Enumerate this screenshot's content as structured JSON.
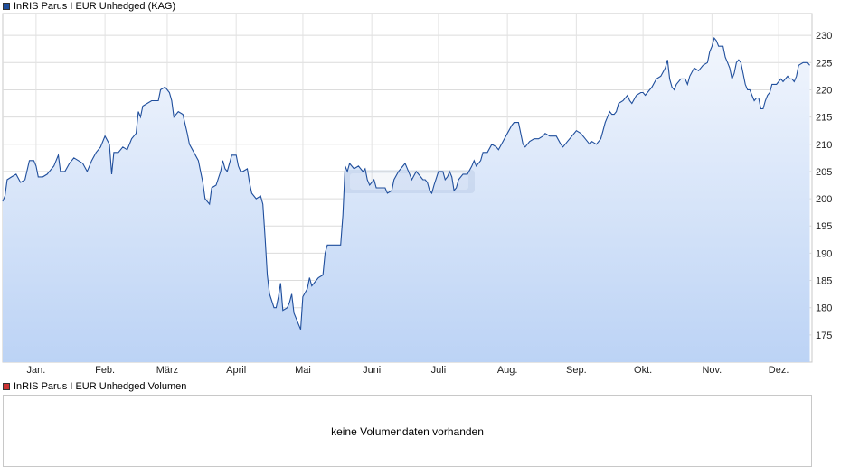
{
  "chart_data": [
    {
      "type": "area",
      "legend": "InRIS Parus I EUR Unhedged (KAG)",
      "series_color": "#1f4e9c",
      "fill_top_color": "#f2f6fd",
      "fill_bottom_color": "#bcd3f5",
      "grid": true,
      "ylim": [
        170,
        234
      ],
      "y_ticks": [
        175,
        180,
        185,
        190,
        195,
        200,
        205,
        210,
        215,
        220,
        225,
        230
      ],
      "y_axis_position": "right",
      "x_ticks": [
        {
          "label": "Jan.",
          "day": 15
        },
        {
          "label": "Feb.",
          "day": 46
        },
        {
          "label": "März",
          "day": 74
        },
        {
          "label": "April",
          "day": 105
        },
        {
          "label": "Mai",
          "day": 135
        },
        {
          "label": "Juni",
          "day": 166
        },
        {
          "label": "Juli",
          "day": 196
        },
        {
          "label": "Aug.",
          "day": 227
        },
        {
          "label": "Sep.",
          "day": 258
        },
        {
          "label": "Okt.",
          "day": 288
        },
        {
          "label": "Nov.",
          "day": 319
        },
        {
          "label": "Dez.",
          "day": 349
        }
      ],
      "xlim": [
        0,
        364
      ],
      "points": [
        [
          0,
          199.5
        ],
        [
          1,
          200.5
        ],
        [
          2,
          203.5
        ],
        [
          4,
          204
        ],
        [
          6,
          204.5
        ],
        [
          8,
          203
        ],
        [
          10,
          203.5
        ],
        [
          12,
          207
        ],
        [
          14,
          207
        ],
        [
          15,
          206
        ],
        [
          16,
          204
        ],
        [
          18,
          204
        ],
        [
          20,
          204.5
        ],
        [
          21,
          205
        ],
        [
          23,
          206
        ],
        [
          25,
          208
        ],
        [
          26,
          205
        ],
        [
          28,
          205
        ],
        [
          30,
          206.5
        ],
        [
          32,
          207.5
        ],
        [
          34,
          207
        ],
        [
          36,
          206.5
        ],
        [
          38,
          205
        ],
        [
          39,
          206
        ],
        [
          40,
          207
        ],
        [
          42,
          208.5
        ],
        [
          44,
          209.5
        ],
        [
          46,
          211.5
        ],
        [
          48,
          210
        ],
        [
          49,
          204.5
        ],
        [
          50,
          208.5
        ],
        [
          52,
          208.5
        ],
        [
          54,
          209.5
        ],
        [
          56,
          209
        ],
        [
          58,
          211
        ],
        [
          60,
          212
        ],
        [
          61,
          216
        ],
        [
          62,
          215
        ],
        [
          63,
          217
        ],
        [
          65,
          217.5
        ],
        [
          67,
          218
        ],
        [
          70,
          218
        ],
        [
          71,
          220
        ],
        [
          73,
          220.5
        ],
        [
          75,
          219.5
        ],
        [
          76,
          218
        ],
        [
          77,
          215
        ],
        [
          79,
          216
        ],
        [
          81,
          215.5
        ],
        [
          83,
          212
        ],
        [
          84,
          210
        ],
        [
          86,
          208.5
        ],
        [
          88,
          207
        ],
        [
          89,
          205
        ],
        [
          90,
          203
        ],
        [
          91,
          200
        ],
        [
          93,
          199
        ],
        [
          94,
          202
        ],
        [
          96,
          202.5
        ],
        [
          98,
          205
        ],
        [
          99,
          207
        ],
        [
          100,
          205.5
        ],
        [
          101,
          205
        ],
        [
          103,
          208
        ],
        [
          105,
          208
        ],
        [
          106,
          206
        ],
        [
          107,
          205
        ],
        [
          108,
          205
        ],
        [
          110,
          205.5
        ],
        [
          111,
          203
        ],
        [
          112,
          201
        ],
        [
          114,
          200
        ],
        [
          116,
          200.5
        ],
        [
          117,
          199
        ],
        [
          118,
          193
        ],
        [
          119,
          186
        ],
        [
          120,
          182.5
        ],
        [
          122,
          180
        ],
        [
          123,
          180
        ],
        [
          124,
          182
        ],
        [
          125,
          184.5
        ],
        [
          126,
          179.5
        ],
        [
          128,
          180
        ],
        [
          129,
          181
        ],
        [
          130,
          182.5
        ],
        [
          131,
          179
        ],
        [
          132,
          178
        ],
        [
          133,
          177
        ],
        [
          134,
          176
        ],
        [
          135,
          182
        ],
        [
          137,
          183.5
        ],
        [
          138,
          185.5
        ],
        [
          139,
          184
        ],
        [
          141,
          185
        ],
        [
          142,
          185.5
        ],
        [
          144,
          186
        ],
        [
          145,
          190
        ],
        [
          146,
          191.5
        ],
        [
          148,
          191.5
        ],
        [
          150,
          191.5
        ],
        [
          152,
          191.5
        ],
        [
          153,
          197
        ],
        [
          154,
          206
        ],
        [
          155,
          205
        ],
        [
          156,
          206.5
        ],
        [
          157,
          206
        ],
        [
          158,
          205.5
        ],
        [
          160,
          206
        ],
        [
          162,
          205
        ],
        [
          163,
          205.5
        ],
        [
          164,
          203.5
        ],
        [
          165,
          202.5
        ],
        [
          167,
          203.5
        ],
        [
          168,
          202
        ],
        [
          170,
          202
        ],
        [
          172,
          202
        ],
        [
          173,
          201
        ],
        [
          175,
          201.5
        ],
        [
          176,
          203.5
        ],
        [
          178,
          205
        ],
        [
          180,
          206
        ],
        [
          181,
          206.5
        ],
        [
          182,
          205.5
        ],
        [
          183,
          204.5
        ],
        [
          184,
          203.5
        ],
        [
          186,
          205
        ],
        [
          188,
          204
        ],
        [
          189,
          203.5
        ],
        [
          190,
          203.5
        ],
        [
          191,
          203
        ],
        [
          192,
          201.5
        ],
        [
          193,
          201
        ],
        [
          194,
          202.5
        ],
        [
          196,
          205
        ],
        [
          198,
          205
        ],
        [
          199,
          203.5
        ],
        [
          200,
          204
        ],
        [
          201,
          205
        ],
        [
          202,
          204
        ],
        [
          203,
          201.5
        ],
        [
          204,
          202
        ],
        [
          205,
          203.5
        ],
        [
          207,
          204.5
        ],
        [
          209,
          204.5
        ],
        [
          211,
          206
        ],
        [
          212,
          207
        ],
        [
          213,
          206
        ],
        [
          215,
          207
        ],
        [
          216,
          208.5
        ],
        [
          218,
          208.5
        ],
        [
          220,
          210
        ],
        [
          222,
          209.5
        ],
        [
          223,
          209
        ],
        [
          225,
          210.5
        ],
        [
          227,
          212
        ],
        [
          229,
          213.5
        ],
        [
          230,
          214
        ],
        [
          232,
          214
        ],
        [
          233,
          212
        ],
        [
          234,
          210
        ],
        [
          235,
          209.5
        ],
        [
          237,
          210.5
        ],
        [
          239,
          211
        ],
        [
          241,
          211
        ],
        [
          243,
          211.5
        ],
        [
          244,
          212
        ],
        [
          246,
          211.5
        ],
        [
          247,
          211.5
        ],
        [
          249,
          211.5
        ],
        [
          251,
          210
        ],
        [
          252,
          209.5
        ],
        [
          254,
          210.5
        ],
        [
          256,
          211.5
        ],
        [
          258,
          212.5
        ],
        [
          260,
          212
        ],
        [
          262,
          211
        ],
        [
          264,
          210
        ],
        [
          265,
          210.5
        ],
        [
          267,
          210
        ],
        [
          269,
          211
        ],
        [
          270,
          212.5
        ],
        [
          271,
          214
        ],
        [
          273,
          216
        ],
        [
          274,
          215.5
        ],
        [
          275,
          215.5
        ],
        [
          276,
          216
        ],
        [
          277,
          217.5
        ],
        [
          279,
          218
        ],
        [
          281,
          219
        ],
        [
          282,
          218
        ],
        [
          283,
          217.5
        ],
        [
          285,
          219
        ],
        [
          287,
          219.5
        ],
        [
          288,
          219.5
        ],
        [
          289,
          219
        ],
        [
          290,
          219.5
        ],
        [
          292,
          220.5
        ],
        [
          294,
          222
        ],
        [
          296,
          222.5
        ],
        [
          298,
          224
        ],
        [
          299,
          225.5
        ],
        [
          300,
          222
        ],
        [
          301,
          220.5
        ],
        [
          302,
          220
        ],
        [
          303,
          221
        ],
        [
          305,
          222
        ],
        [
          307,
          222
        ],
        [
          308,
          221
        ],
        [
          309,
          222.5
        ],
        [
          311,
          224
        ],
        [
          313,
          223.5
        ],
        [
          315,
          224.5
        ],
        [
          317,
          225
        ],
        [
          318,
          227
        ],
        [
          319,
          228
        ],
        [
          320,
          229.5
        ],
        [
          321,
          229
        ],
        [
          322,
          228
        ],
        [
          324,
          228
        ],
        [
          325,
          226
        ],
        [
          326,
          225
        ],
        [
          327,
          224
        ],
        [
          328,
          222
        ],
        [
          329,
          223
        ],
        [
          330,
          225
        ],
        [
          331,
          225.5
        ],
        [
          332,
          225
        ],
        [
          333,
          223
        ],
        [
          334,
          221
        ],
        [
          335,
          220
        ],
        [
          336,
          220
        ],
        [
          337,
          219
        ],
        [
          338,
          218
        ],
        [
          339,
          218.5
        ],
        [
          340,
          218.5
        ],
        [
          341,
          216.5
        ],
        [
          342,
          216.5
        ],
        [
          343,
          218
        ],
        [
          344,
          219
        ],
        [
          345,
          219.5
        ],
        [
          346,
          221
        ],
        [
          348,
          221
        ],
        [
          350,
          222
        ],
        [
          351,
          221.5
        ],
        [
          352,
          222
        ],
        [
          353,
          222.5
        ],
        [
          354,
          222
        ],
        [
          355,
          222
        ],
        [
          356,
          221.5
        ],
        [
          357,
          222.5
        ],
        [
          358,
          224.5
        ],
        [
          360,
          225
        ],
        [
          362,
          225
        ],
        [
          363,
          224.5
        ]
      ]
    },
    {
      "type": "bar",
      "legend": "InRIS Parus I EUR Unhedged Volumen",
      "series_color": "#cc3333",
      "message": "keine Volumendaten vorhanden",
      "values": []
    }
  ]
}
